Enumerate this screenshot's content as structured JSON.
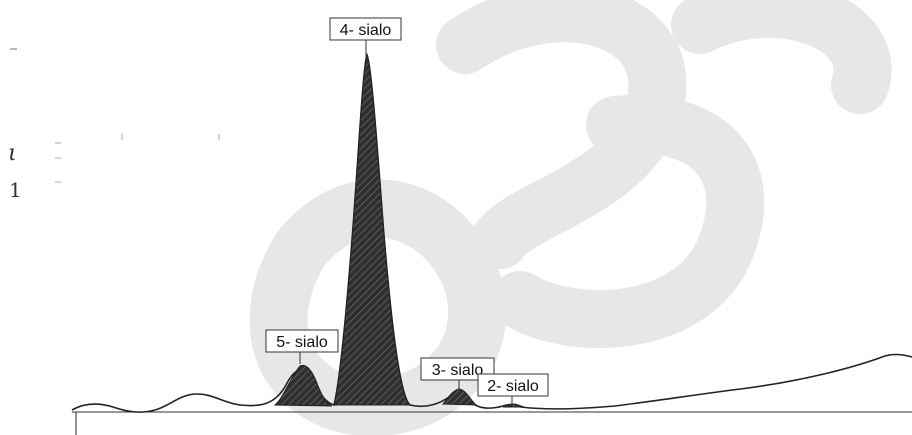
{
  "chart_data": {
    "type": "area",
    "title": "",
    "xlabel": "",
    "ylabel": "",
    "grid": false,
    "legend": "none",
    "series": [
      {
        "peaks": [
          {
            "label": "5- sialo",
            "height": 0.145,
            "fill": "#2b2b2b"
          },
          {
            "label": "4- sialo",
            "height": 1.0,
            "fill": "#2b2b2b"
          },
          {
            "label": "3- sialo",
            "height": 0.06,
            "fill": "#2b2b2b"
          },
          {
            "label": "2- sialo",
            "height": 0.015,
            "fill": "#2b2b2b"
          }
        ]
      }
    ]
  },
  "colors": {
    "trace": "#222222",
    "peak_fill": "#2b2b2b",
    "hatch": "#777777",
    "watermark": "#d9d9d9"
  },
  "margin_marks": [
    "ι",
    "1"
  ]
}
